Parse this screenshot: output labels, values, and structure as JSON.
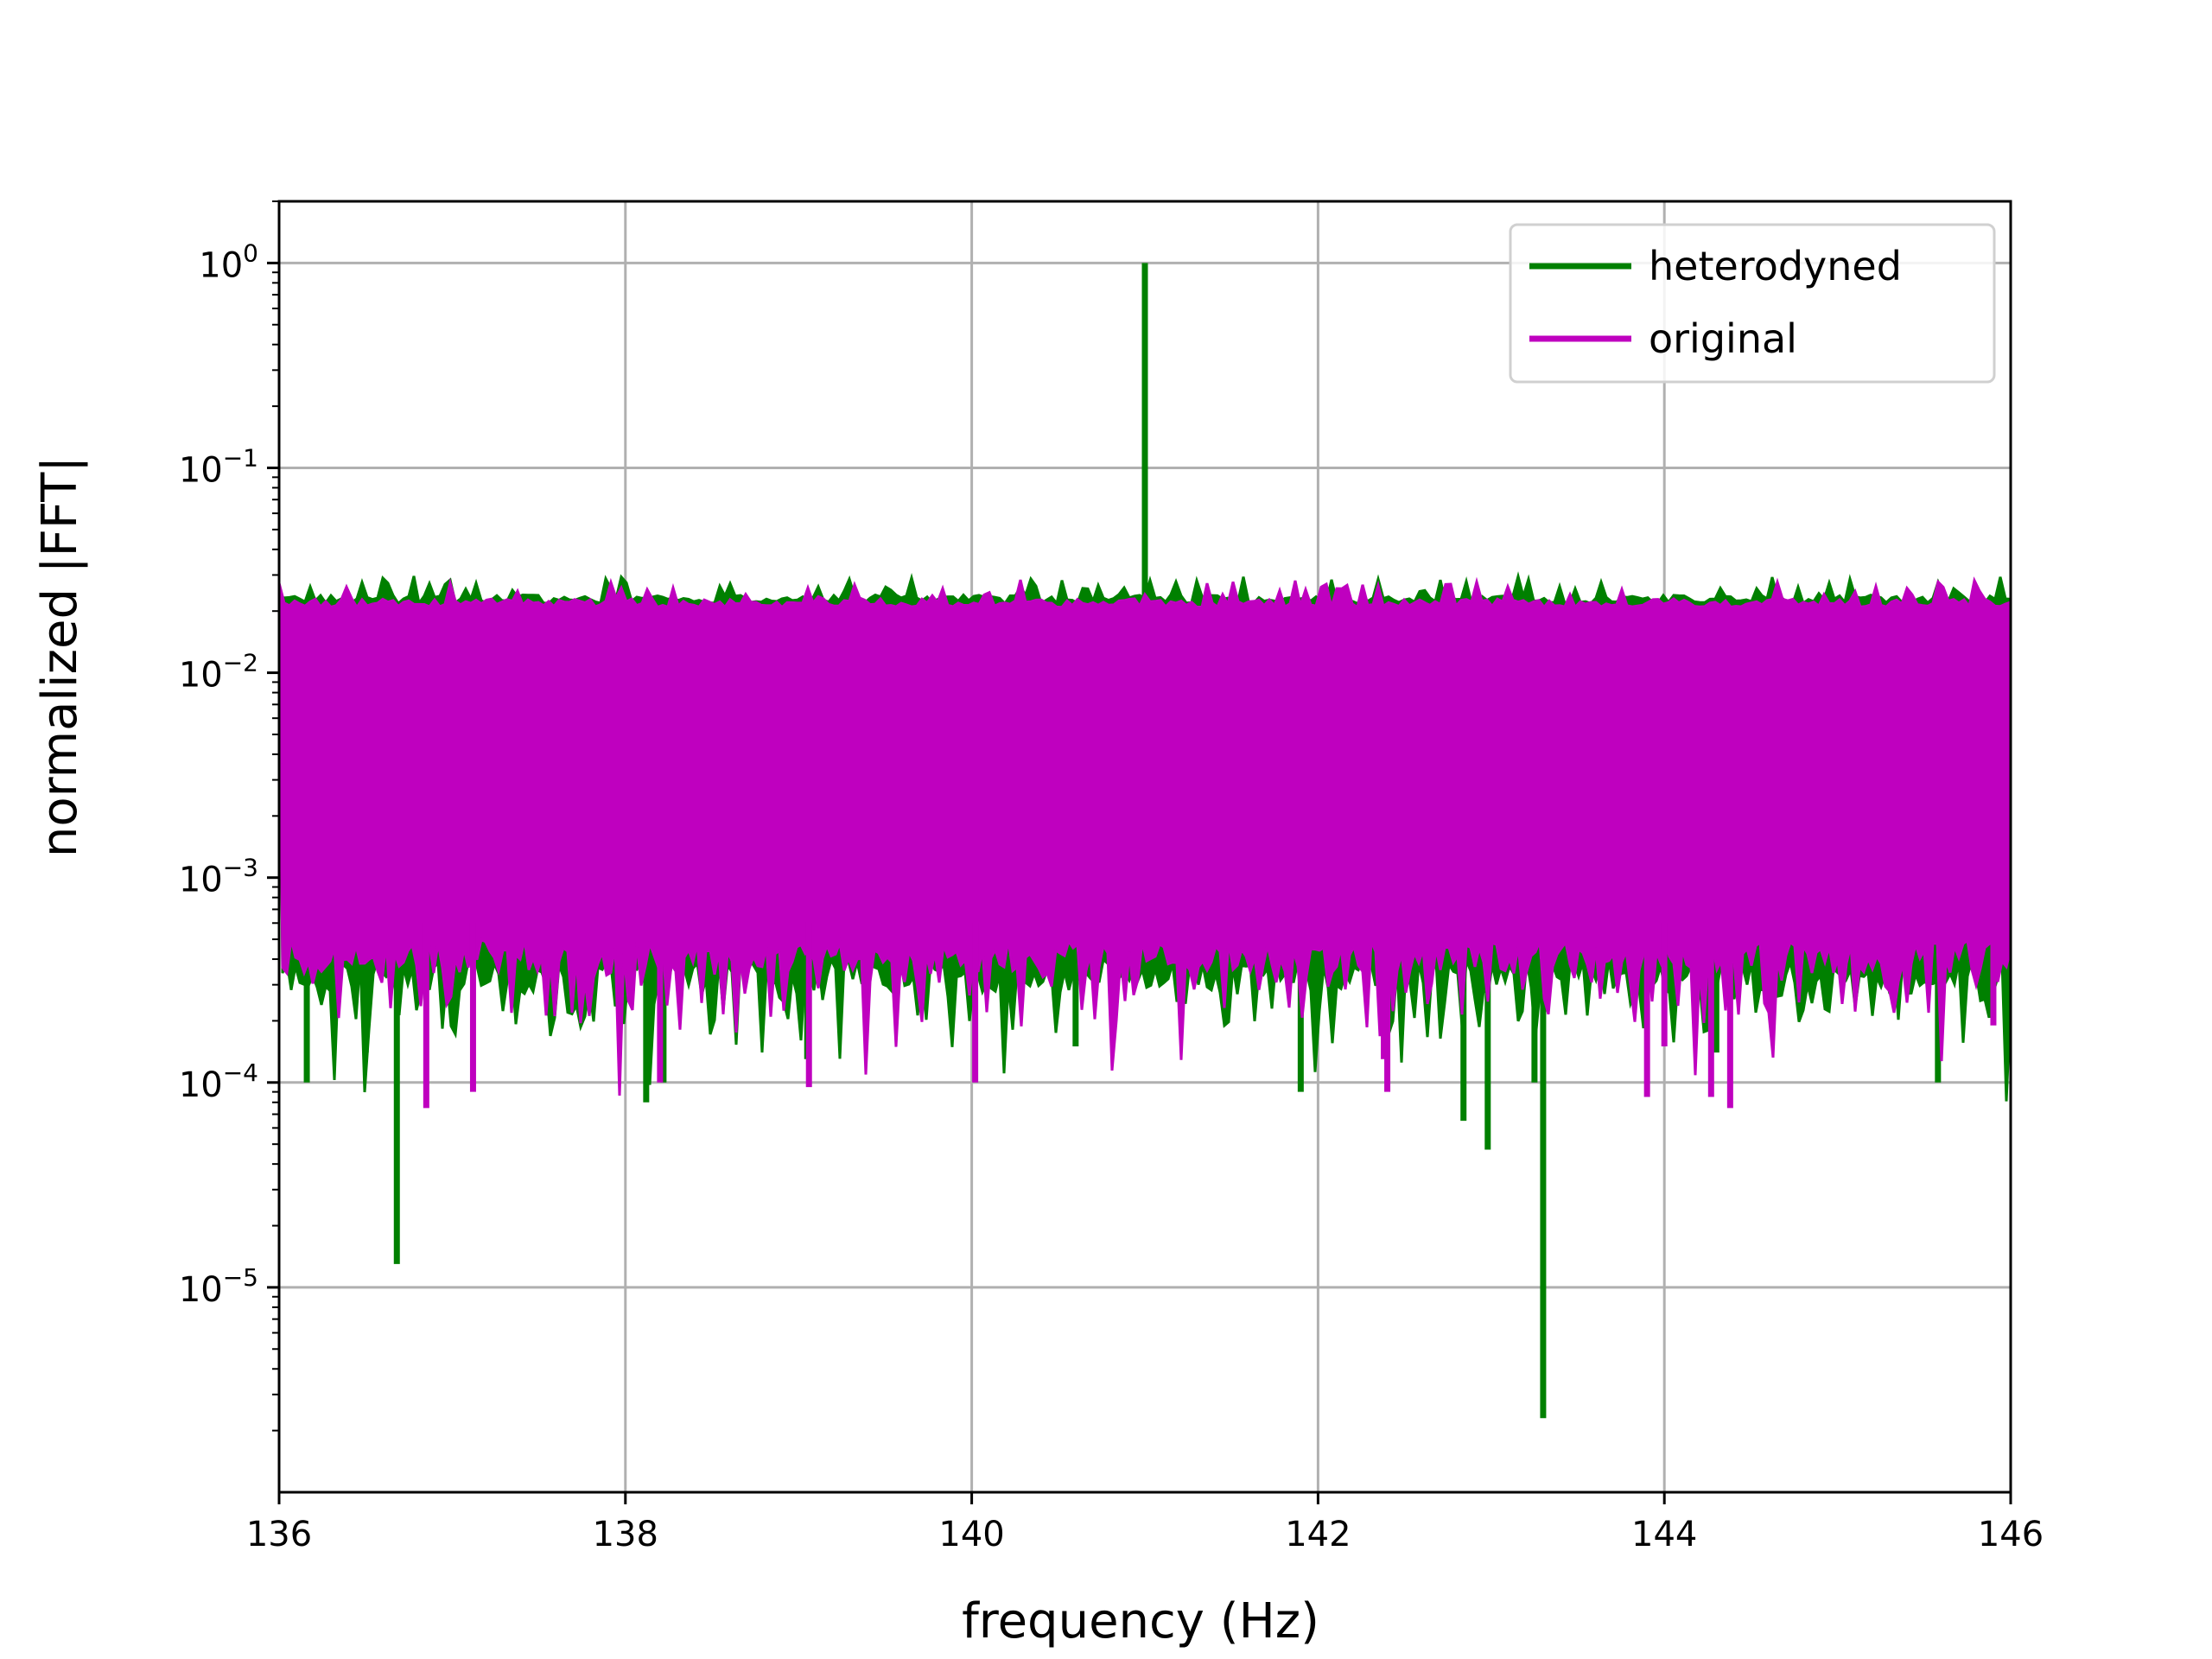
{
  "chart_data": {
    "type": "line",
    "title": "",
    "xlabel": "frequency (Hz)",
    "ylabel": "normalized |FFT|",
    "xlim": [
      136,
      146
    ],
    "ylim": [
      1e-06,
      2
    ],
    "yscale": "log",
    "grid": true,
    "legend_position": "top-right",
    "x_ticks": [
      136,
      138,
      140,
      142,
      144,
      146
    ],
    "x_tick_labels": [
      "136",
      "138",
      "140",
      "142",
      "144",
      "146"
    ],
    "y_ticks": [
      1,
      0.1,
      0.01,
      0.001,
      0.0001,
      1e-05
    ],
    "y_tick_labels": [
      {
        "base": "10",
        "exp": "0"
      },
      {
        "base": "10",
        "exp": "−1"
      },
      {
        "base": "10",
        "exp": "−2"
      },
      {
        "base": "10",
        "exp": "−3"
      },
      {
        "base": "10",
        "exp": "−4"
      },
      {
        "base": "10",
        "exp": "−5"
      }
    ],
    "series": [
      {
        "name": "heterodyned",
        "color": "#008000",
        "band": {
          "lower": 0.0004,
          "upper": 0.024
        },
        "spikes": [
          {
            "x": 141.0,
            "y": 1.0
          },
          {
            "x": 136.68,
            "y": 1.3e-05
          },
          {
            "x": 143.3,
            "y": 2.3e-06
          },
          {
            "x": 136.16,
            "y": 0.0001
          },
          {
            "x": 136.5,
            "y": 0.00014
          },
          {
            "x": 138.12,
            "y": 8e-05
          },
          {
            "x": 138.22,
            "y": 0.0001
          },
          {
            "x": 139.05,
            "y": 0.00013
          },
          {
            "x": 141.9,
            "y": 9e-05
          },
          {
            "x": 142.84,
            "y": 6.5e-05
          },
          {
            "x": 142.98,
            "y": 4.7e-05
          },
          {
            "x": 143.25,
            "y": 0.0001
          },
          {
            "x": 145.58,
            "y": 0.0001
          },
          {
            "x": 140.6,
            "y": 0.00015
          },
          {
            "x": 144.3,
            "y": 0.00014
          }
        ]
      },
      {
        "name": "original",
        "color": "#bf00bf",
        "band": {
          "lower": 0.0005,
          "upper": 0.023
        },
        "spikes": [
          {
            "x": 136.85,
            "y": 7.5e-05
          },
          {
            "x": 137.12,
            "y": 9e-05
          },
          {
            "x": 138.2,
            "y": 0.0001
          },
          {
            "x": 139.06,
            "y": 9.5e-05
          },
          {
            "x": 140.02,
            "y": 0.0001
          },
          {
            "x": 142.4,
            "y": 9e-05
          },
          {
            "x": 142.38,
            "y": 0.00013
          },
          {
            "x": 143.9,
            "y": 8.5e-05
          },
          {
            "x": 144.27,
            "y": 8.5e-05
          },
          {
            "x": 144.38,
            "y": 7.5e-05
          },
          {
            "x": 145.9,
            "y": 0.00019
          },
          {
            "x": 144.0,
            "y": 0.00015
          }
        ]
      }
    ]
  }
}
